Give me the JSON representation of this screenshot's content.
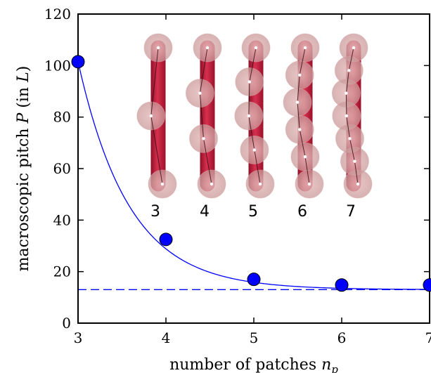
{
  "chart_data": {
    "type": "scatter",
    "title": "",
    "xlabel": "number of patches",
    "xlabel_symbol": "n",
    "xlabel_subscript": "p",
    "ylabel_prefix": "macroscopic pitch",
    "ylabel_symbol": "P",
    "ylabel_suffix": "(in",
    "ylabel_unit": "L",
    "ylabel_close": ")",
    "xlim": [
      3,
      7
    ],
    "ylim": [
      0,
      120
    ],
    "xticks": [
      "3",
      "4",
      "5",
      "6",
      "7"
    ],
    "yticks": [
      "0",
      "20",
      "40",
      "60",
      "80",
      "100",
      "120"
    ],
    "grid": false,
    "points": {
      "x": [
        3,
        4,
        5,
        6,
        7
      ],
      "y": [
        101.5,
        32.5,
        17.0,
        14.8,
        14.8
      ],
      "color": "#0000ff"
    },
    "fit_curve": {
      "style": "solid",
      "color": "#0000ff",
      "asymptote": 13.0,
      "amplitude": 88.5,
      "rate": 1.72
    },
    "asymptote_line": {
      "style": "dashed",
      "color": "#0000ff",
      "y": 13.0
    },
    "inset": {
      "rod_color": "#cc1f3f",
      "patch_color": "#d9a5a5",
      "labels": [
        "3",
        "4",
        "5",
        "6",
        "7"
      ]
    }
  }
}
